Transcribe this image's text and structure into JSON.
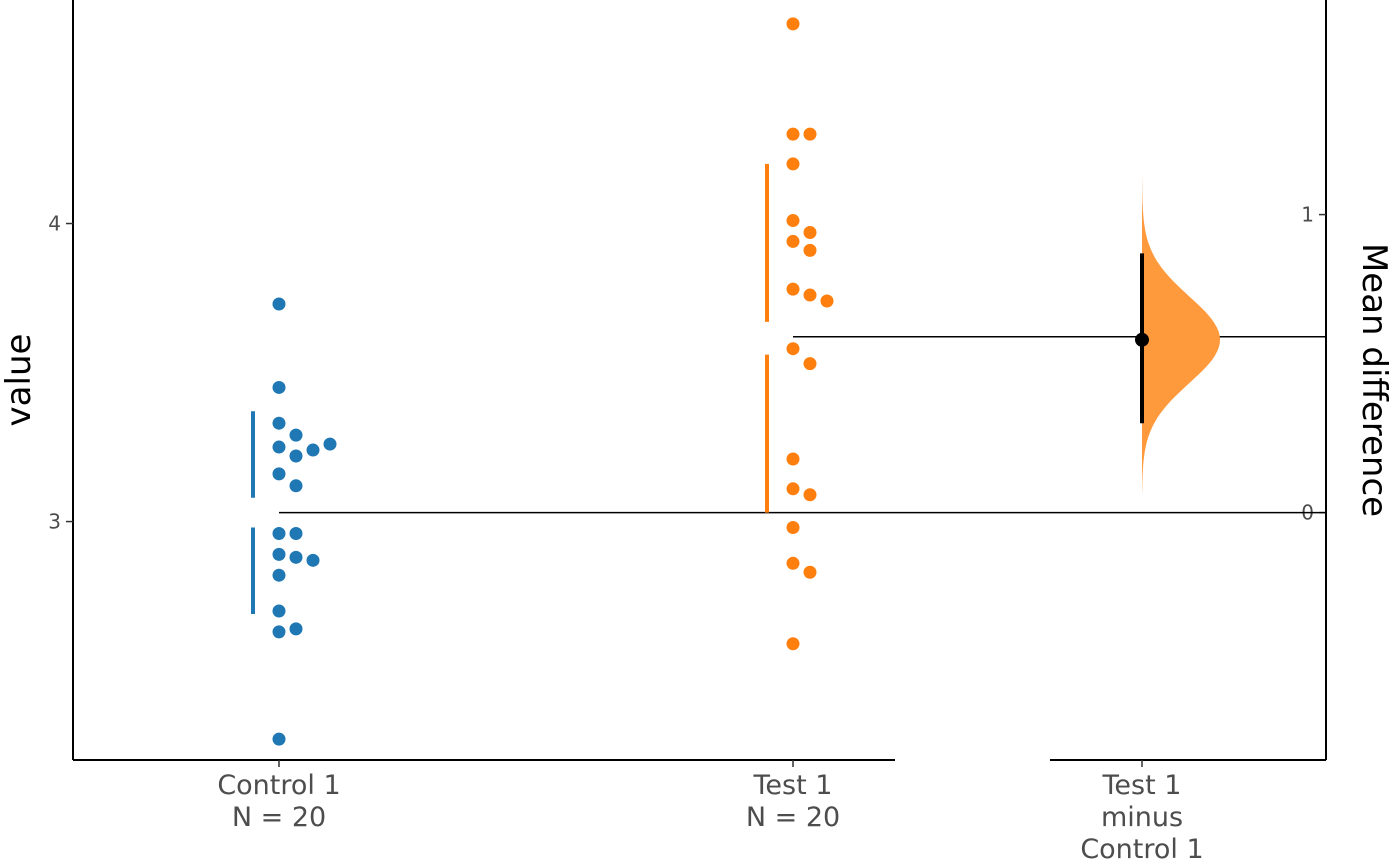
{
  "chart_data": {
    "type": "scatter",
    "subtype": "estimation-plot (swarm + mean difference)",
    "ylabel": "value",
    "ylabel_right": "Mean difference",
    "ylim": [
      2.2,
      4.75
    ],
    "y_ticks": [
      3,
      4
    ],
    "delta_ylim": [
      -0.85,
      1.75
    ],
    "delta_ticks": [
      0,
      1
    ],
    "grid": false,
    "legend": "none",
    "groups": [
      {
        "label": "Control 1",
        "n_label": "N = 20",
        "color": "#1f77b4",
        "mean": 3.03,
        "gap_sd": [
          3.08,
          3.37,
          2.69,
          2.98
        ],
        "values": [
          3.73,
          3.45,
          3.33,
          3.29,
          3.25,
          3.24,
          3.26,
          3.22,
          3.16,
          3.12,
          2.96,
          2.96,
          2.89,
          2.88,
          2.87,
          2.82,
          2.7,
          2.63,
          2.64,
          2.27
        ]
      },
      {
        "label": "Test 1",
        "n_label": "N = 20",
        "color": "#ff7f0e",
        "mean": 3.62,
        "gap_sd": [
          3.67,
          4.2,
          3.03,
          3.56
        ],
        "values": [
          4.67,
          4.3,
          4.3,
          4.2,
          4.01,
          3.97,
          3.94,
          3.91,
          3.78,
          3.76,
          3.74,
          3.58,
          3.53,
          3.21,
          3.11,
          3.09,
          2.98,
          2.86,
          2.83,
          2.59
        ]
      }
    ],
    "delta": {
      "label_lines": [
        "Test 1",
        "minus",
        "Control 1"
      ],
      "color": "#ff9a3c",
      "mean_diff": 0.58,
      "ci": [
        0.3,
        0.87
      ],
      "dist_range": [
        0.07,
        1.12
      ]
    }
  }
}
